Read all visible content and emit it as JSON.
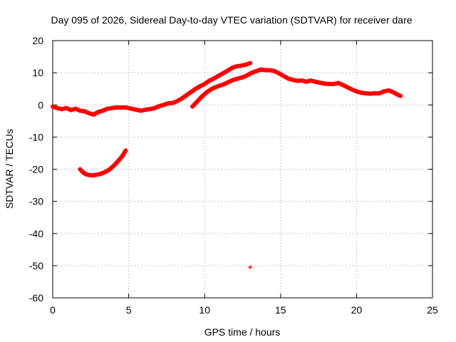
{
  "chart_data": {
    "type": "scatter",
    "title": "Day 095 of 2026, Sidereal Day-to-day VTEC variation (SDTVAR) for receiver dare",
    "xlabel": "GPS time / hours",
    "ylabel": "SDTVAR / TECUs",
    "xlim": [
      0,
      25
    ],
    "ylim": [
      -60,
      20
    ],
    "xticks": [
      "0",
      "5",
      "10",
      "15",
      "20",
      "25"
    ],
    "yticks": [
      "20",
      "10",
      "0",
      "-10",
      "-20",
      "-30",
      "-40",
      "-50",
      "-60"
    ],
    "grid": true,
    "marker": "+",
    "series": [
      {
        "name": "SDTVAR",
        "color": "#ff0000",
        "points": [
          [
            0.0,
            -0.5
          ],
          [
            0.3,
            -1.0
          ],
          [
            0.6,
            -1.3
          ],
          [
            0.9,
            -1.0
          ],
          [
            1.2,
            -1.6
          ],
          [
            1.5,
            -1.2
          ],
          [
            1.8,
            -1.8
          ],
          [
            2.1,
            -2.0
          ],
          [
            2.4,
            -2.6
          ],
          [
            2.7,
            -3.0
          ],
          [
            3.0,
            -2.2
          ],
          [
            3.3,
            -1.8
          ],
          [
            3.6,
            -1.2
          ],
          [
            3.9,
            -1.0
          ],
          [
            4.2,
            -0.8
          ],
          [
            4.5,
            -0.8
          ],
          [
            4.8,
            -0.8
          ],
          [
            5.2,
            -1.2
          ],
          [
            5.5,
            -1.5
          ],
          [
            5.8,
            -1.8
          ],
          [
            6.1,
            -1.5
          ],
          [
            6.4,
            -1.3
          ],
          [
            6.7,
            -1.0
          ],
          [
            7.0,
            -0.4
          ],
          [
            7.3,
            0.0
          ],
          [
            7.6,
            0.5
          ],
          [
            7.9,
            0.6
          ],
          [
            8.2,
            1.2
          ],
          [
            8.5,
            2.0
          ],
          [
            8.8,
            3.0
          ],
          [
            9.1,
            4.0
          ],
          [
            9.4,
            5.0
          ],
          [
            9.7,
            5.8
          ],
          [
            10.0,
            6.5
          ],
          [
            10.3,
            7.5
          ],
          [
            10.6,
            8.2
          ],
          [
            10.9,
            9.0
          ],
          [
            11.2,
            9.8
          ],
          [
            11.5,
            10.6
          ],
          [
            11.8,
            11.5
          ],
          [
            12.1,
            12.0
          ],
          [
            12.4,
            12.2
          ],
          [
            12.7,
            12.5
          ],
          [
            13.0,
            13.0
          ],
          [
            9.2,
            -0.5
          ],
          [
            9.5,
            1.0
          ],
          [
            9.8,
            2.5
          ],
          [
            10.1,
            3.8
          ],
          [
            10.4,
            4.8
          ],
          [
            10.7,
            5.5
          ],
          [
            11.0,
            6.0
          ],
          [
            11.3,
            6.5
          ],
          [
            11.6,
            7.2
          ],
          [
            11.9,
            7.8
          ],
          [
            12.2,
            8.2
          ],
          [
            12.5,
            8.6
          ],
          [
            12.8,
            9.2
          ],
          [
            13.1,
            10.0
          ],
          [
            13.4,
            10.5
          ],
          [
            13.7,
            11.0
          ],
          [
            14.0,
            10.8
          ],
          [
            14.3,
            10.8
          ],
          [
            14.6,
            10.5
          ],
          [
            14.9,
            9.8
          ],
          [
            15.2,
            9.0
          ],
          [
            15.5,
            8.2
          ],
          [
            15.8,
            7.8
          ],
          [
            16.1,
            7.5
          ],
          [
            16.4,
            7.6
          ],
          [
            16.7,
            7.2
          ],
          [
            17.0,
            7.6
          ],
          [
            17.3,
            7.2
          ],
          [
            17.6,
            6.9
          ],
          [
            17.9,
            6.6
          ],
          [
            18.2,
            6.5
          ],
          [
            18.5,
            6.5
          ],
          [
            18.8,
            6.8
          ],
          [
            19.1,
            6.2
          ],
          [
            19.4,
            5.5
          ],
          [
            19.7,
            4.8
          ],
          [
            20.0,
            4.2
          ],
          [
            20.3,
            3.8
          ],
          [
            20.6,
            3.6
          ],
          [
            20.9,
            3.5
          ],
          [
            21.2,
            3.6
          ],
          [
            21.5,
            3.6
          ],
          [
            21.8,
            4.2
          ],
          [
            22.1,
            4.5
          ],
          [
            22.4,
            4.0
          ],
          [
            22.7,
            3.2
          ],
          [
            22.9,
            2.8
          ],
          [
            1.8,
            -20.0
          ],
          [
            2.0,
            -21.0
          ],
          [
            2.2,
            -21.6
          ],
          [
            2.5,
            -21.9
          ],
          [
            2.8,
            -21.8
          ],
          [
            3.1,
            -21.5
          ],
          [
            3.4,
            -21.0
          ],
          [
            3.7,
            -20.2
          ],
          [
            4.0,
            -19.0
          ],
          [
            4.3,
            -17.5
          ],
          [
            4.6,
            -15.8
          ],
          [
            4.8,
            -14.2
          ],
          [
            13.0,
            -50.5
          ]
        ]
      }
    ]
  }
}
